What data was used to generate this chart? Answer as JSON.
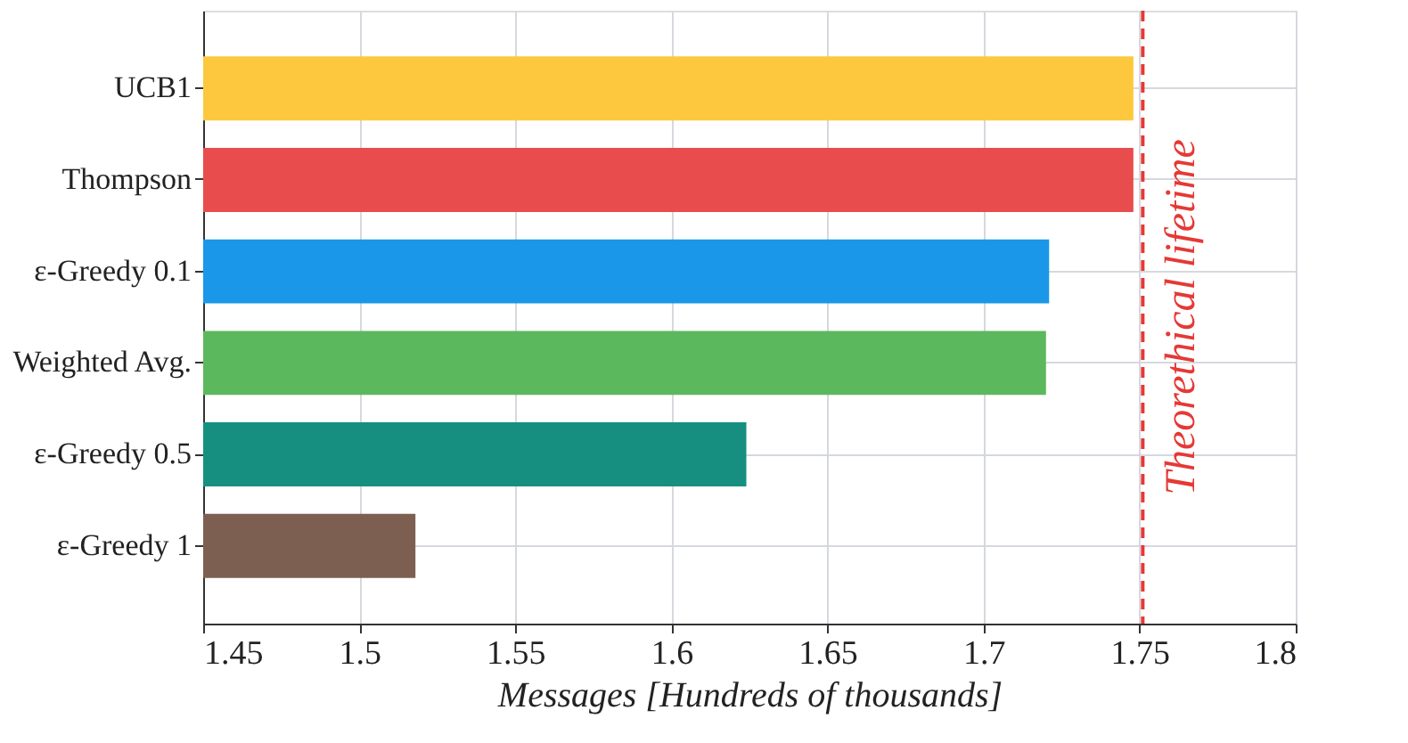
{
  "chart_data": {
    "type": "bar",
    "orientation": "horizontal",
    "xlabel": "Messages [Hundreds of thousands]",
    "categories": [
      "UCB1",
      "Thompson",
      "ε-Greedy 0.1",
      "Weighted Avg.",
      "ε-Greedy 0.5",
      "ε-Greedy 1"
    ],
    "values": [
      1.748,
      1.748,
      1.721,
      1.72,
      1.624,
      1.518
    ],
    "colors": [
      "#fdc83e",
      "#e84c4c",
      "#1a97e8",
      "#5cb85c",
      "#168f80",
      "#7d5f52"
    ],
    "xlim": [
      1.45,
      1.8
    ],
    "xticks": [
      1.45,
      1.5,
      1.55,
      1.6,
      1.65,
      1.7,
      1.75,
      1.8
    ],
    "grid": true,
    "ref_lines": [
      {
        "axis": "x",
        "value": 1.751,
        "label": "Theorethical lifetime",
        "color": "#e53935",
        "line_style": "dashed"
      }
    ]
  }
}
